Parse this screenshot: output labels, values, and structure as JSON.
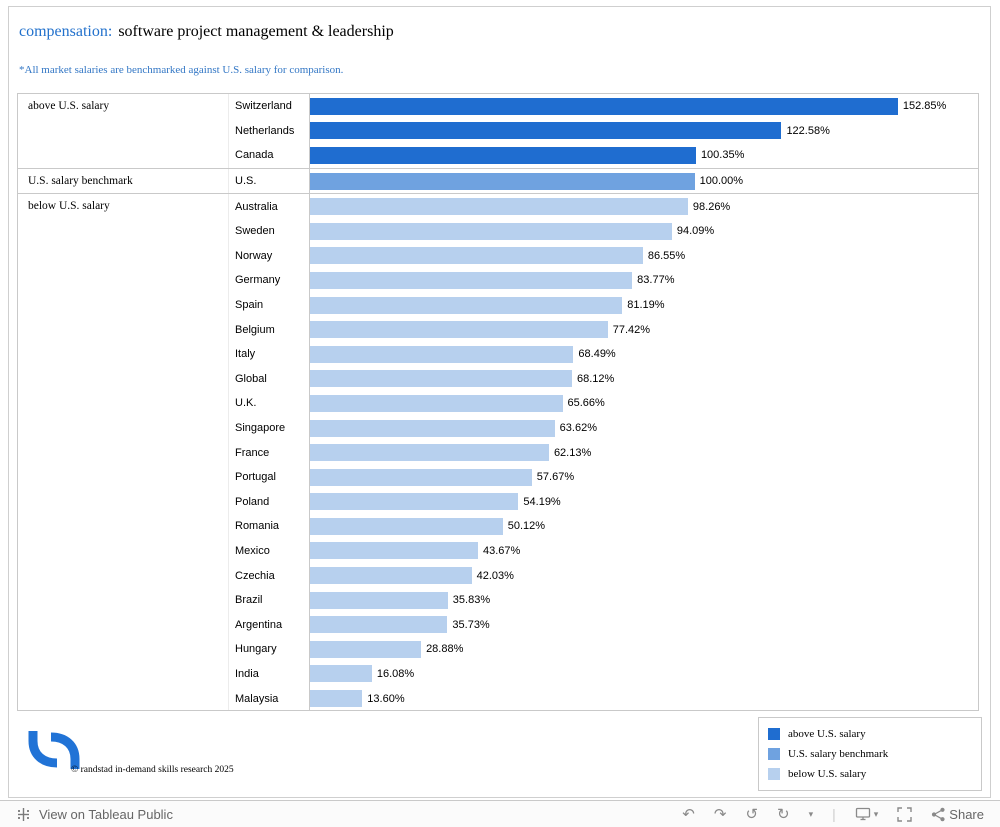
{
  "header": {
    "title_accent": "compensation:",
    "title_rest": "software project management & leadership",
    "subtitle": "*All market salaries are benchmarked against U.S. salary for comparison."
  },
  "chart_data": {
    "type": "bar",
    "orientation": "horizontal",
    "value_unit": "percent of U.S. salary",
    "xlim": [
      0,
      160
    ],
    "benchmark_value": 100.0,
    "groups": [
      {
        "label": "above U.S. salary",
        "color": "#1f6dd0",
        "rows": [
          {
            "country": "Switzerland",
            "value": 152.85,
            "label": "152.85%"
          },
          {
            "country": "Netherlands",
            "value": 122.58,
            "label": "122.58%"
          },
          {
            "country": "Canada",
            "value": 100.35,
            "label": "100.35%"
          }
        ]
      },
      {
        "label": "U.S. salary benchmark",
        "color": "#6fa2e0",
        "rows": [
          {
            "country": "U.S.",
            "value": 100.0,
            "label": "100.00%"
          }
        ]
      },
      {
        "label": "below U.S. salary",
        "color": "#b7d0ee",
        "rows": [
          {
            "country": "Australia",
            "value": 98.26,
            "label": "98.26%"
          },
          {
            "country": "Sweden",
            "value": 94.09,
            "label": "94.09%"
          },
          {
            "country": "Norway",
            "value": 86.55,
            "label": "86.55%"
          },
          {
            "country": "Germany",
            "value": 83.77,
            "label": "83.77%"
          },
          {
            "country": "Spain",
            "value": 81.19,
            "label": "81.19%"
          },
          {
            "country": "Belgium",
            "value": 77.42,
            "label": "77.42%"
          },
          {
            "country": "Italy",
            "value": 68.49,
            "label": "68.49%"
          },
          {
            "country": "Global",
            "value": 68.12,
            "label": "68.12%"
          },
          {
            "country": "U.K.",
            "value": 65.66,
            "label": "65.66%"
          },
          {
            "country": "Singapore",
            "value": 63.62,
            "label": "63.62%"
          },
          {
            "country": "France",
            "value": 62.13,
            "label": "62.13%"
          },
          {
            "country": "Portugal",
            "value": 57.67,
            "label": "57.67%"
          },
          {
            "country": "Poland",
            "value": 54.19,
            "label": "54.19%"
          },
          {
            "country": "Romania",
            "value": 50.12,
            "label": "50.12%"
          },
          {
            "country": "Mexico",
            "value": 43.67,
            "label": "43.67%"
          },
          {
            "country": "Czechia",
            "value": 42.03,
            "label": "42.03%"
          },
          {
            "country": "Brazil",
            "value": 35.83,
            "label": "35.83%"
          },
          {
            "country": "Argentina",
            "value": 35.73,
            "label": "35.73%"
          },
          {
            "country": "Hungary",
            "value": 28.88,
            "label": "28.88%"
          },
          {
            "country": "India",
            "value": 16.08,
            "label": "16.08%"
          },
          {
            "country": "Malaysia",
            "value": 13.6,
            "label": "13.60%"
          }
        ]
      }
    ]
  },
  "legend": {
    "items": [
      {
        "label": "above U.S. salary",
        "color": "#1f6dd0"
      },
      {
        "label": "U.S. salary benchmark",
        "color": "#6fa2e0"
      },
      {
        "label": "below U.S. salary",
        "color": "#b7d0ee"
      }
    ]
  },
  "footer": {
    "copyright": "© randstad in-demand skills research 2025"
  },
  "toolbar": {
    "view_label": "View on Tableau Public",
    "share_label": "Share",
    "icons": {
      "undo": "↶",
      "redo": "↷",
      "reset": "↺",
      "refresh": "↻",
      "caret": "▾",
      "divider": "|"
    }
  }
}
